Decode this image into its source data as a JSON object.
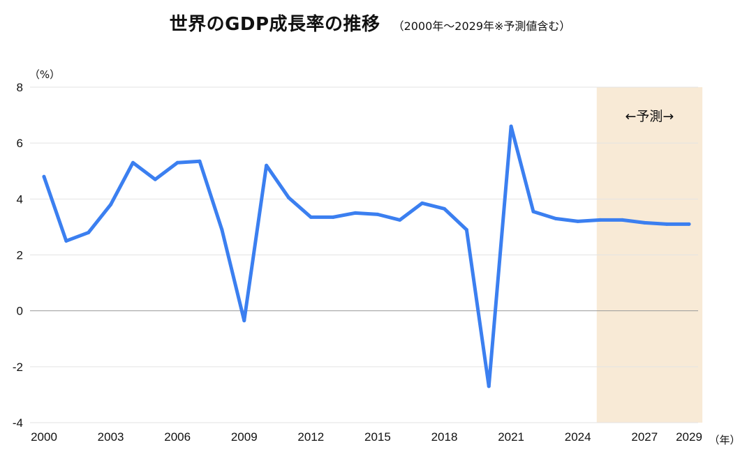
{
  "title": "世界のGDP成長率の推移",
  "subtitle": "（2000年〜2029年※予測値含む）",
  "chart_data": {
    "type": "line",
    "title": "世界のGDP成長率の推移",
    "subtitle": "（2000年〜2029年※予測値含む）",
    "y_unit_label": "（%）",
    "x_unit_label": "（年）",
    "x": [
      2000,
      2001,
      2002,
      2003,
      2004,
      2005,
      2006,
      2007,
      2008,
      2009,
      2010,
      2011,
      2012,
      2013,
      2014,
      2015,
      2016,
      2017,
      2018,
      2019,
      2020,
      2021,
      2022,
      2023,
      2024,
      2025,
      2026,
      2027,
      2028,
      2029
    ],
    "series": [
      {
        "color": "#3b7ff0",
        "values": [
          4.8,
          2.5,
          2.8,
          3.8,
          5.3,
          4.7,
          5.3,
          5.35,
          2.9,
          -0.35,
          5.2,
          4.05,
          3.35,
          3.35,
          3.5,
          3.45,
          3.25,
          3.85,
          3.65,
          2.9,
          -2.7,
          6.6,
          3.55,
          3.3,
          3.2,
          3.25,
          3.25,
          3.15,
          3.1,
          3.1
        ]
      }
    ],
    "x_ticks": [
      "2000",
      "2003",
      "2006",
      "2009",
      "2012",
      "2015",
      "2018",
      "2021",
      "2024",
      "2027",
      "2029"
    ],
    "y_ticks": [
      "8",
      "6",
      "4",
      "2",
      "0",
      "-2",
      "-4"
    ],
    "ylim": [
      -4,
      8
    ],
    "xlim": [
      2000,
      2029
    ],
    "grid": true,
    "forecast": {
      "label": "←予測→",
      "start": 2024.85,
      "end": 2029.6,
      "color": "#f8ead6"
    },
    "zero_line_color": "#999999",
    "grid_color": "#e3e3e3"
  }
}
